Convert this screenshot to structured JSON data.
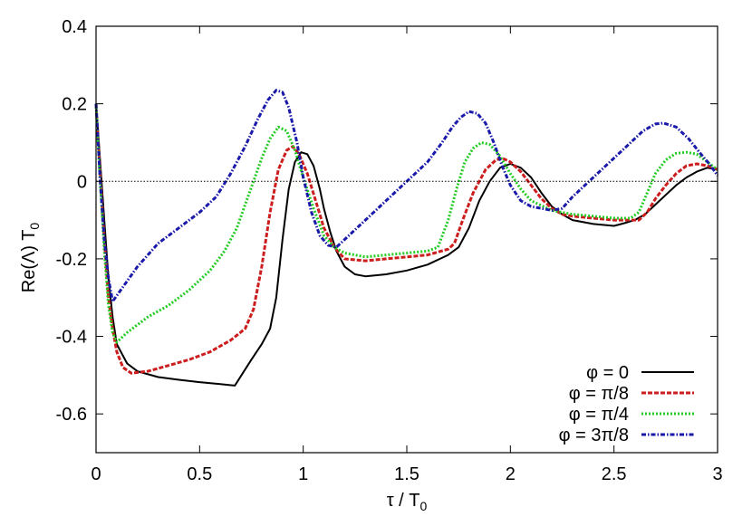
{
  "chart_data": {
    "type": "line",
    "title": "",
    "xlabel": "τ / T",
    "xlabel_sub": "0",
    "ylabel": "Re(Λ) T",
    "ylabel_sub": "0",
    "xlim": [
      0,
      3
    ],
    "ylim": [
      -0.7,
      0.4
    ],
    "x_ticks": [
      0,
      0.5,
      1,
      1.5,
      2,
      2.5,
      3
    ],
    "x_tick_labels": [
      "0",
      "0.5",
      "1",
      "1.5",
      "2",
      "2.5",
      "3"
    ],
    "y_ticks": [
      0.4,
      0.2,
      0,
      -0.2,
      -0.4,
      -0.6
    ],
    "y_tick_labels": [
      "0.4",
      "0.2",
      "0",
      "-0.2",
      "-0.4",
      "-0.6"
    ],
    "grid": false,
    "zero_line": true,
    "legend_position": "bottom-right",
    "series": [
      {
        "name": "φ = 0",
        "color": "#000000",
        "style": "solid",
        "points": [
          [
            0,
            0.2
          ],
          [
            0.02,
            0.05
          ],
          [
            0.04,
            -0.1
          ],
          [
            0.06,
            -0.25
          ],
          [
            0.08,
            -0.35
          ],
          [
            0.1,
            -0.42
          ],
          [
            0.15,
            -0.47
          ],
          [
            0.2,
            -0.49
          ],
          [
            0.3,
            -0.505
          ],
          [
            0.4,
            -0.512
          ],
          [
            0.5,
            -0.518
          ],
          [
            0.6,
            -0.523
          ],
          [
            0.67,
            -0.527
          ],
          [
            0.75,
            -0.46
          ],
          [
            0.8,
            -0.42
          ],
          [
            0.84,
            -0.38
          ],
          [
            0.87,
            -0.3
          ],
          [
            0.9,
            -0.15
          ],
          [
            0.93,
            -0.02
          ],
          [
            0.96,
            0.05
          ],
          [
            0.99,
            0.075
          ],
          [
            1.02,
            0.07
          ],
          [
            1.05,
            0.04
          ],
          [
            1.08,
            -0.02
          ],
          [
            1.1,
            -0.07
          ],
          [
            1.13,
            -0.13
          ],
          [
            1.16,
            -0.18
          ],
          [
            1.2,
            -0.22
          ],
          [
            1.25,
            -0.24
          ],
          [
            1.3,
            -0.245
          ],
          [
            1.4,
            -0.24
          ],
          [
            1.5,
            -0.23
          ],
          [
            1.6,
            -0.215
          ],
          [
            1.7,
            -0.19
          ],
          [
            1.75,
            -0.17
          ],
          [
            1.8,
            -0.12
          ],
          [
            1.85,
            -0.05
          ],
          [
            1.9,
            0.0
          ],
          [
            1.95,
            0.035
          ],
          [
            2.0,
            0.045
          ],
          [
            2.05,
            0.035
          ],
          [
            2.1,
            0.01
          ],
          [
            2.15,
            -0.03
          ],
          [
            2.2,
            -0.065
          ],
          [
            2.25,
            -0.085
          ],
          [
            2.3,
            -0.1
          ],
          [
            2.4,
            -0.11
          ],
          [
            2.5,
            -0.115
          ],
          [
            2.55,
            -0.108
          ],
          [
            2.6,
            -0.1
          ],
          [
            2.65,
            -0.085
          ],
          [
            2.7,
            -0.06
          ],
          [
            2.75,
            -0.035
          ],
          [
            2.8,
            -0.01
          ],
          [
            2.85,
            0.01
          ],
          [
            2.9,
            0.025
          ],
          [
            2.95,
            0.035
          ],
          [
            3.0,
            0.03
          ]
        ]
      },
      {
        "name": "φ = π/8",
        "color": "#cc1e1e",
        "style": "dashed",
        "points": [
          [
            0,
            0.2
          ],
          [
            0.02,
            0.02
          ],
          [
            0.04,
            -0.15
          ],
          [
            0.06,
            -0.3
          ],
          [
            0.08,
            -0.38
          ],
          [
            0.1,
            -0.44
          ],
          [
            0.13,
            -0.48
          ],
          [
            0.17,
            -0.495
          ],
          [
            0.25,
            -0.49
          ],
          [
            0.35,
            -0.475
          ],
          [
            0.45,
            -0.46
          ],
          [
            0.55,
            -0.44
          ],
          [
            0.65,
            -0.41
          ],
          [
            0.72,
            -0.38
          ],
          [
            0.76,
            -0.33
          ],
          [
            0.8,
            -0.22
          ],
          [
            0.84,
            -0.08
          ],
          [
            0.88,
            0.03
          ],
          [
            0.92,
            0.08
          ],
          [
            0.95,
            0.09
          ],
          [
            0.98,
            0.07
          ],
          [
            1.02,
            0.02
          ],
          [
            1.06,
            -0.05
          ],
          [
            1.1,
            -0.12
          ],
          [
            1.15,
            -0.17
          ],
          [
            1.2,
            -0.2
          ],
          [
            1.3,
            -0.205
          ],
          [
            1.4,
            -0.2
          ],
          [
            1.5,
            -0.195
          ],
          [
            1.6,
            -0.19
          ],
          [
            1.7,
            -0.175
          ],
          [
            1.73,
            -0.16
          ],
          [
            1.77,
            -0.1
          ],
          [
            1.82,
            -0.03
          ],
          [
            1.88,
            0.03
          ],
          [
            1.93,
            0.055
          ],
          [
            1.96,
            0.06
          ],
          [
            2.0,
            0.05
          ],
          [
            2.05,
            0.025
          ],
          [
            2.1,
            -0.01
          ],
          [
            2.15,
            -0.045
          ],
          [
            2.2,
            -0.07
          ],
          [
            2.25,
            -0.085
          ],
          [
            2.3,
            -0.09
          ],
          [
            2.4,
            -0.095
          ],
          [
            2.5,
            -0.1
          ],
          [
            2.55,
            -0.1
          ],
          [
            2.62,
            -0.1
          ],
          [
            2.66,
            -0.08
          ],
          [
            2.7,
            -0.045
          ],
          [
            2.75,
            -0.01
          ],
          [
            2.8,
            0.02
          ],
          [
            2.85,
            0.04
          ],
          [
            2.9,
            0.045
          ],
          [
            2.95,
            0.04
          ],
          [
            3.0,
            0.03
          ]
        ]
      },
      {
        "name": "φ = π/4",
        "color": "#22cc22",
        "style": "dotted",
        "points": [
          [
            0,
            0.2
          ],
          [
            0.02,
            0.0
          ],
          [
            0.04,
            -0.18
          ],
          [
            0.06,
            -0.32
          ],
          [
            0.08,
            -0.39
          ],
          [
            0.1,
            -0.415
          ],
          [
            0.15,
            -0.39
          ],
          [
            0.25,
            -0.35
          ],
          [
            0.35,
            -0.32
          ],
          [
            0.45,
            -0.28
          ],
          [
            0.55,
            -0.23
          ],
          [
            0.62,
            -0.18
          ],
          [
            0.68,
            -0.12
          ],
          [
            0.72,
            -0.06
          ],
          [
            0.76,
            0.0
          ],
          [
            0.8,
            0.06
          ],
          [
            0.84,
            0.11
          ],
          [
            0.88,
            0.14
          ],
          [
            0.92,
            0.13
          ],
          [
            0.96,
            0.08
          ],
          [
            1.0,
            0.01
          ],
          [
            1.05,
            -0.07
          ],
          [
            1.1,
            -0.14
          ],
          [
            1.15,
            -0.17
          ],
          [
            1.2,
            -0.185
          ],
          [
            1.3,
            -0.195
          ],
          [
            1.4,
            -0.19
          ],
          [
            1.5,
            -0.185
          ],
          [
            1.6,
            -0.18
          ],
          [
            1.65,
            -0.17
          ],
          [
            1.7,
            -0.1
          ],
          [
            1.74,
            -0.02
          ],
          [
            1.78,
            0.05
          ],
          [
            1.82,
            0.085
          ],
          [
            1.86,
            0.1
          ],
          [
            1.9,
            0.095
          ],
          [
            1.95,
            0.065
          ],
          [
            2.0,
            0.02
          ],
          [
            2.05,
            -0.02
          ],
          [
            2.1,
            -0.05
          ],
          [
            2.2,
            -0.075
          ],
          [
            2.3,
            -0.085
          ],
          [
            2.4,
            -0.09
          ],
          [
            2.5,
            -0.095
          ],
          [
            2.58,
            -0.095
          ],
          [
            2.62,
            -0.08
          ],
          [
            2.66,
            -0.03
          ],
          [
            2.7,
            0.02
          ],
          [
            2.75,
            0.055
          ],
          [
            2.8,
            0.072
          ],
          [
            2.85,
            0.075
          ],
          [
            2.9,
            0.07
          ],
          [
            2.95,
            0.05
          ],
          [
            3.0,
            0.03
          ]
        ]
      },
      {
        "name": "φ = 3π/8",
        "color": "#1a1aaa",
        "style": "dashdot",
        "points": [
          [
            0,
            0.2
          ],
          [
            0.02,
            0.0
          ],
          [
            0.04,
            -0.15
          ],
          [
            0.06,
            -0.25
          ],
          [
            0.08,
            -0.31
          ],
          [
            0.12,
            -0.28
          ],
          [
            0.2,
            -0.22
          ],
          [
            0.3,
            -0.16
          ],
          [
            0.4,
            -0.12
          ],
          [
            0.5,
            -0.08
          ],
          [
            0.58,
            -0.04
          ],
          [
            0.65,
            0.02
          ],
          [
            0.72,
            0.09
          ],
          [
            0.78,
            0.16
          ],
          [
            0.83,
            0.21
          ],
          [
            0.87,
            0.235
          ],
          [
            0.9,
            0.23
          ],
          [
            0.93,
            0.19
          ],
          [
            0.97,
            0.1
          ],
          [
            1.0,
            0.01
          ],
          [
            1.04,
            -0.08
          ],
          [
            1.08,
            -0.14
          ],
          [
            1.12,
            -0.165
          ],
          [
            1.16,
            -0.17
          ],
          [
            1.2,
            -0.15
          ],
          [
            1.3,
            -0.1
          ],
          [
            1.4,
            -0.05
          ],
          [
            1.5,
            0.0
          ],
          [
            1.6,
            0.05
          ],
          [
            1.67,
            0.1
          ],
          [
            1.72,
            0.14
          ],
          [
            1.76,
            0.165
          ],
          [
            1.8,
            0.18
          ],
          [
            1.84,
            0.175
          ],
          [
            1.88,
            0.15
          ],
          [
            1.92,
            0.1
          ],
          [
            1.96,
            0.04
          ],
          [
            2.0,
            -0.01
          ],
          [
            2.05,
            -0.05
          ],
          [
            2.1,
            -0.065
          ],
          [
            2.15,
            -0.07
          ],
          [
            2.2,
            -0.075
          ],
          [
            2.25,
            -0.07
          ],
          [
            2.3,
            -0.04
          ],
          [
            2.4,
            0.01
          ],
          [
            2.5,
            0.06
          ],
          [
            2.58,
            0.1
          ],
          [
            2.64,
            0.13
          ],
          [
            2.7,
            0.148
          ],
          [
            2.74,
            0.15
          ],
          [
            2.8,
            0.14
          ],
          [
            2.86,
            0.11
          ],
          [
            2.92,
            0.07
          ],
          [
            2.96,
            0.045
          ],
          [
            3.0,
            0.015
          ]
        ]
      }
    ]
  }
}
